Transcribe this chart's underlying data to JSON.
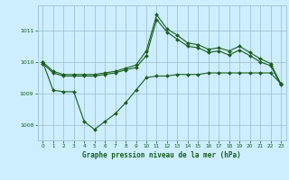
{
  "xlabel": "Graphe pression niveau de la mer (hPa)",
  "background_color": "#cceeff",
  "grid_color": "#99bbcc",
  "line_color": "#1a5c1a",
  "x": [
    0,
    1,
    2,
    3,
    4,
    5,
    6,
    7,
    8,
    9,
    10,
    11,
    12,
    13,
    14,
    15,
    16,
    17,
    18,
    19,
    20,
    21,
    22,
    23
  ],
  "line1": [
    1010.0,
    1009.7,
    1009.6,
    1009.6,
    1009.6,
    1009.6,
    1009.65,
    1009.7,
    1009.8,
    1009.9,
    1010.35,
    1011.5,
    1011.05,
    1010.85,
    1010.6,
    1010.55,
    1010.4,
    1010.45,
    1010.35,
    1010.5,
    1010.3,
    1010.1,
    1009.95,
    1009.3
  ],
  "line2": [
    1009.95,
    1009.65,
    1009.55,
    1009.55,
    1009.55,
    1009.55,
    1009.6,
    1009.65,
    1009.75,
    1009.82,
    1010.2,
    1011.35,
    1010.95,
    1010.72,
    1010.5,
    1010.45,
    1010.3,
    1010.35,
    1010.22,
    1010.38,
    1010.2,
    1010.0,
    1009.88,
    1009.27
  ],
  "line3": [
    1010.0,
    1009.1,
    1009.05,
    1009.05,
    1008.1,
    1007.85,
    1008.1,
    1008.35,
    1008.7,
    1009.1,
    1009.5,
    1009.55,
    1009.55,
    1009.6,
    1009.6,
    1009.6,
    1009.65,
    1009.65,
    1009.65,
    1009.65,
    1009.65,
    1009.65,
    1009.65,
    1009.3
  ],
  "ylim": [
    1007.5,
    1011.8
  ],
  "yticks": [
    1008,
    1009,
    1010,
    1011
  ],
  "xticks": [
    0,
    1,
    2,
    3,
    4,
    5,
    6,
    7,
    8,
    9,
    10,
    11,
    12,
    13,
    14,
    15,
    16,
    17,
    18,
    19,
    20,
    21,
    22,
    23
  ],
  "markersize": 2.0,
  "linewidth": 0.8
}
